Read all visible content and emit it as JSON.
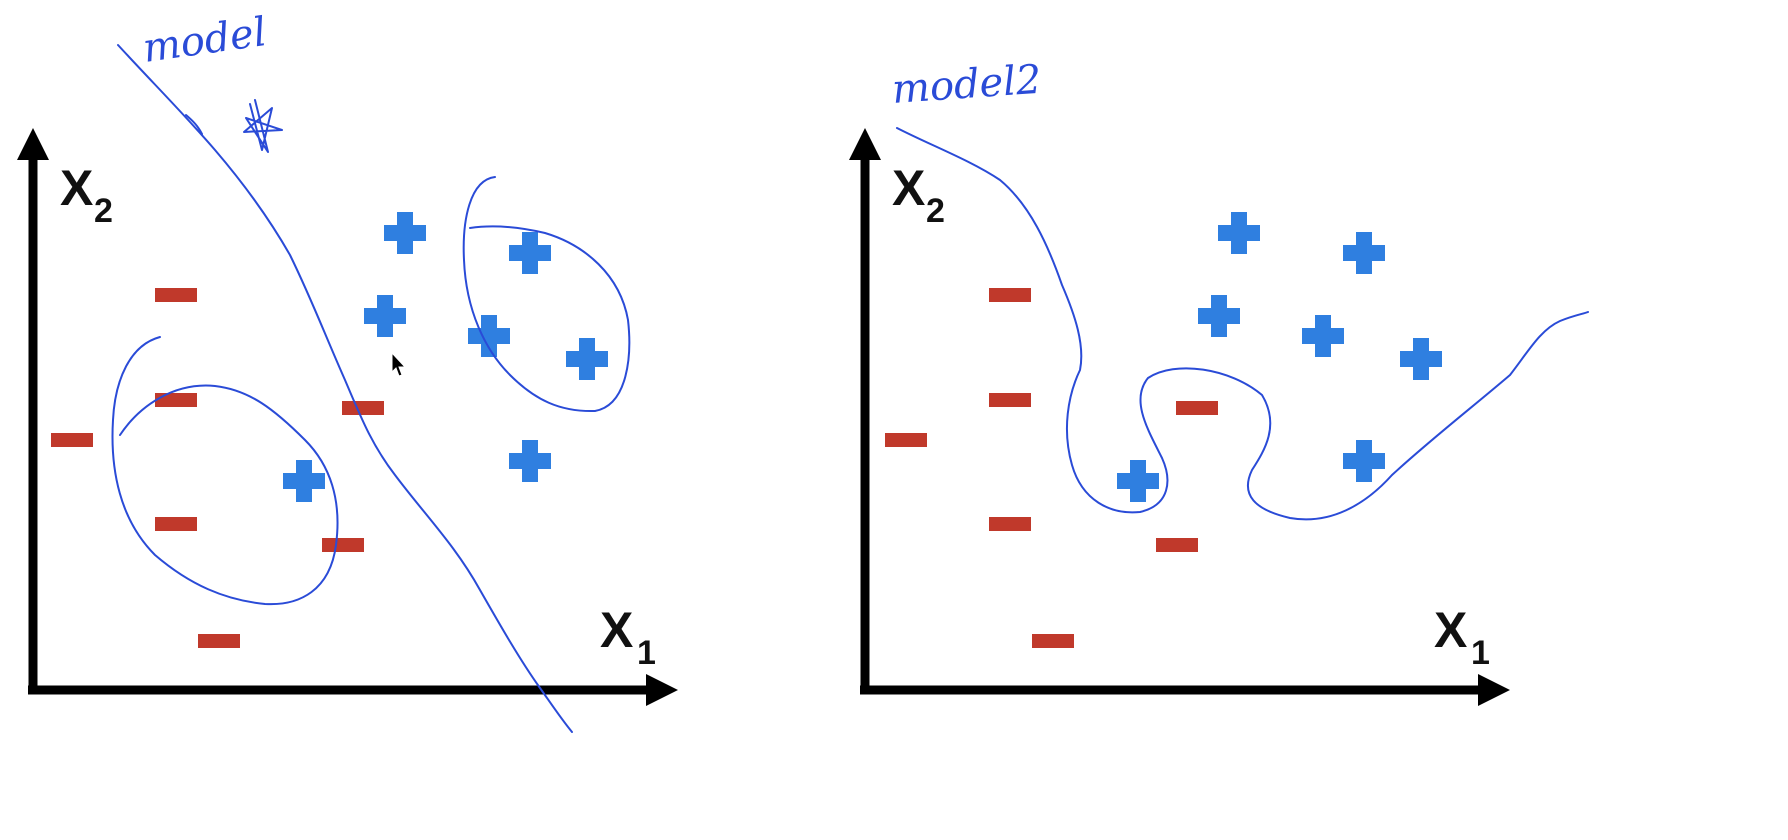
{
  "panels": [
    {
      "id": "left",
      "annotation": "model",
      "x_label": "X",
      "x_sub": "1",
      "y_label": "X",
      "y_sub": "2",
      "negatives": [
        [
          176,
          295
        ],
        [
          176,
          400
        ],
        [
          72,
          440
        ],
        [
          176,
          524
        ],
        [
          219,
          641
        ],
        [
          363,
          408
        ],
        [
          343,
          545
        ]
      ],
      "positives": [
        [
          405,
          233
        ],
        [
          530,
          253
        ],
        [
          385,
          316
        ],
        [
          489,
          336
        ],
        [
          587,
          359
        ],
        [
          530,
          461
        ],
        [
          304,
          481
        ]
      ]
    },
    {
      "id": "right",
      "annotation": "model2",
      "x_label": "X",
      "x_sub": "1",
      "y_label": "X",
      "y_sub": "2",
      "negatives": [
        [
          1010,
          295
        ],
        [
          1010,
          400
        ],
        [
          906,
          440
        ],
        [
          1010,
          524
        ],
        [
          1053,
          641
        ],
        [
          1197,
          408
        ],
        [
          1177,
          545
        ]
      ],
      "positives": [
        [
          1239,
          233
        ],
        [
          1364,
          253
        ],
        [
          1219,
          316
        ],
        [
          1323,
          336
        ],
        [
          1421,
          359
        ],
        [
          1364,
          461
        ],
        [
          1138,
          481
        ]
      ]
    }
  ],
  "colors": {
    "negative": "#c0392b",
    "positive": "#2f7fe0",
    "ink": "#2a4bd7",
    "axis": "#000000"
  },
  "icons": {
    "star": "star-icon",
    "cursor": "mouse-cursor-icon"
  }
}
